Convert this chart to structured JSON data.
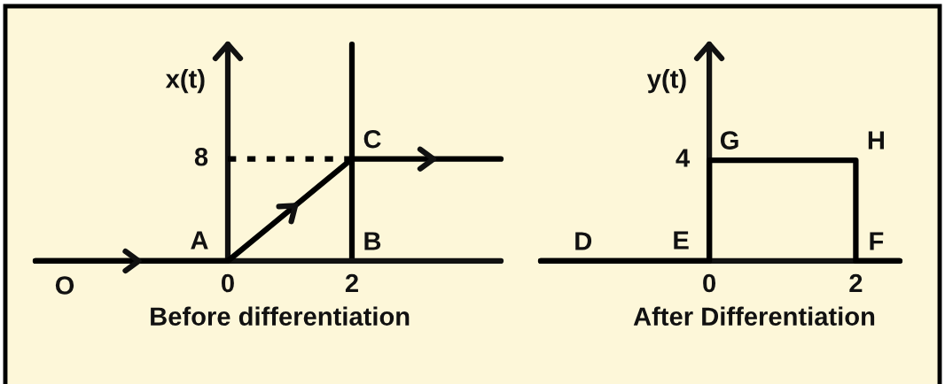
{
  "chart_data": [
    {
      "type": "line",
      "title": "Before differentiation",
      "ylabel": "x(t)",
      "series": [
        {
          "x": [
            -3.1,
            0,
            2,
            4.4
          ],
          "values": [
            0,
            0,
            8,
            8
          ],
          "color": "#000000"
        },
        {
          "x": [
            0,
            2
          ],
          "values": [
            8,
            8
          ],
          "color": "#000000",
          "line_style": "dotted",
          "value_labels": [
            "8",
            null
          ]
        }
      ],
      "xlim": [
        -3.1,
        4.4
      ],
      "ylim": [
        0,
        17
      ],
      "xticks": [
        0,
        2
      ],
      "ref_lines": [
        {
          "axis": "x",
          "value": 2,
          "color": "#000000"
        }
      ],
      "annotations": [
        {
          "text": "O",
          "x": -3.1,
          "y": 0
        },
        {
          "text": "A",
          "x": 0,
          "y": 0
        },
        {
          "text": "B",
          "x": 2,
          "y": 0
        },
        {
          "text": "C",
          "x": 2,
          "y": 8
        }
      ]
    },
    {
      "type": "line",
      "title": "After Differentiation",
      "ylabel": "y(t)",
      "series": [
        {
          "x": [
            -2.3,
            0,
            0,
            2,
            2,
            2.6
          ],
          "values": [
            0,
            0,
            4,
            4,
            0,
            0
          ],
          "color": "#000000",
          "value_labels": [
            null,
            null,
            "4",
            null,
            null,
            null
          ]
        }
      ],
      "xlim": [
        -2.3,
        2.6
      ],
      "ylim": [
        0,
        8.6
      ],
      "xticks": [
        0,
        2
      ],
      "annotations": [
        {
          "text": "D",
          "x": -2.0,
          "y": 0
        },
        {
          "text": "E",
          "x": 0,
          "y": 0
        },
        {
          "text": "F",
          "x": 2,
          "y": 0
        },
        {
          "text": "G",
          "x": 0,
          "y": 4
        },
        {
          "text": "H",
          "x": 2,
          "y": 4
        }
      ]
    }
  ]
}
